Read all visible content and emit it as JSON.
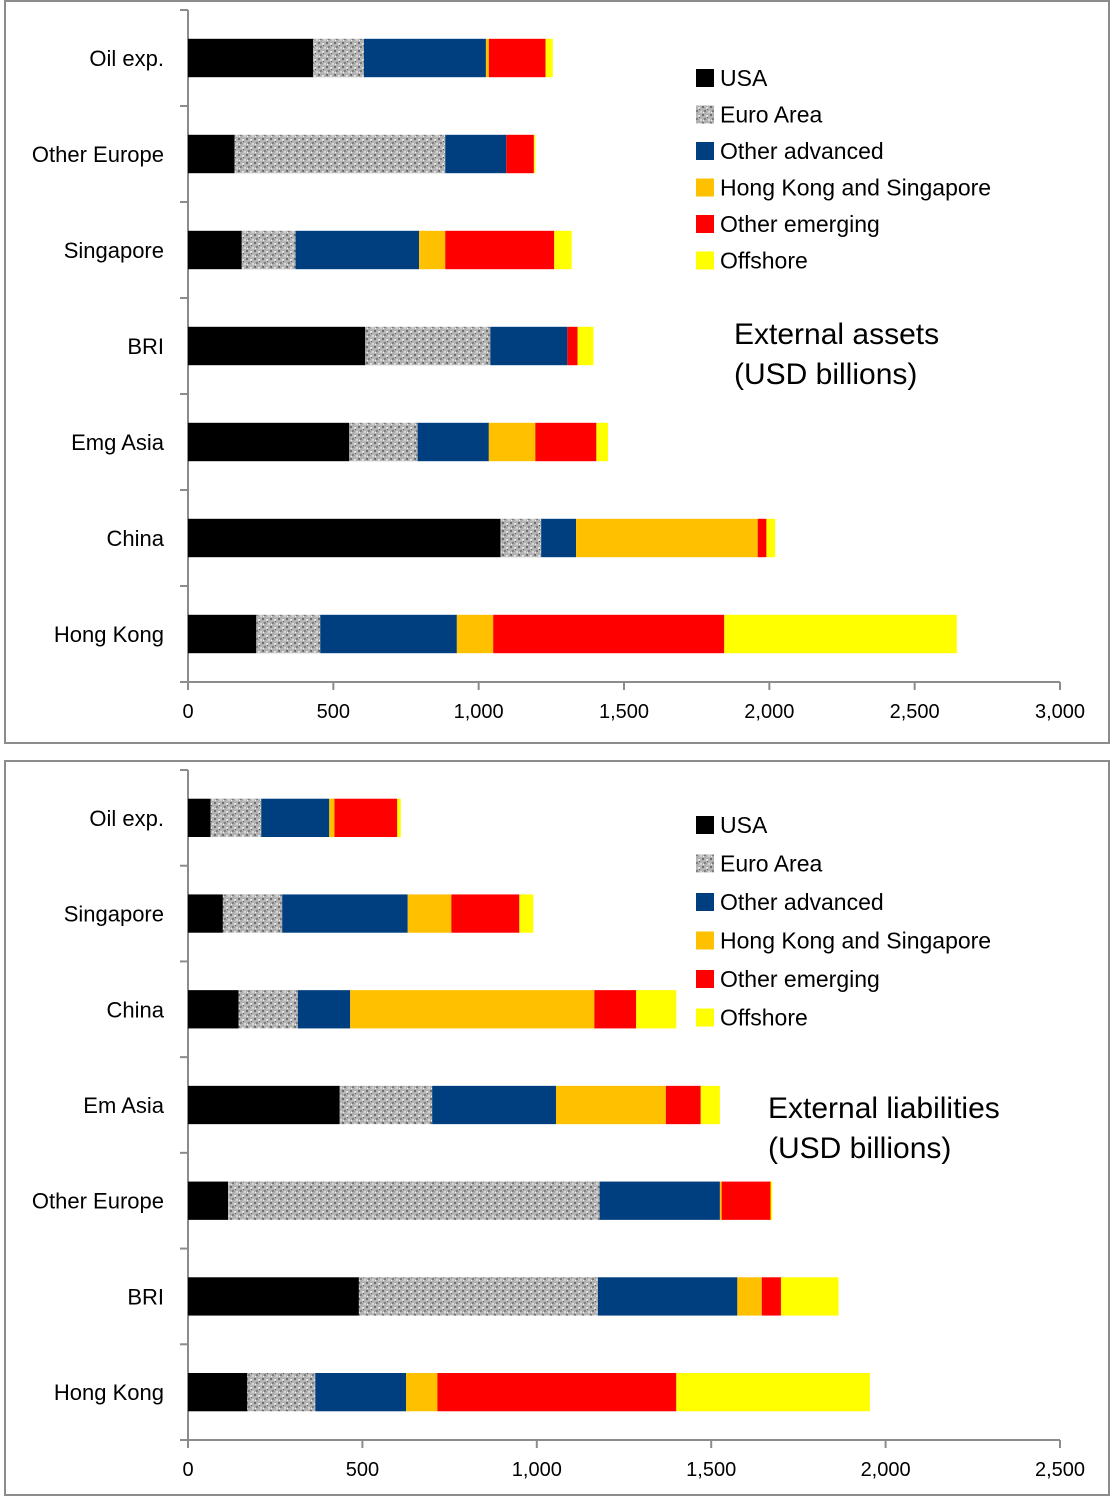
{
  "chart_data": [
    {
      "type": "bar",
      "orientation": "horizontal",
      "stacked": true,
      "title": "",
      "annotation": [
        "External assets",
        "(USD billions)"
      ],
      "xlim": [
        0,
        3000
      ],
      "xticks": [
        "0",
        "500",
        "1,000",
        "1,500",
        "2,000",
        "2,500",
        "3,000"
      ],
      "categories": [
        "Oil exp.",
        "Other Europe",
        "Singapore",
        "BRI",
        "Emg Asia",
        "China",
        "Hong Kong"
      ],
      "legend_position": "top-right",
      "series": [
        {
          "name": "USA",
          "color": "#000000",
          "values": [
            430,
            160,
            185,
            610,
            555,
            1075,
            235
          ]
        },
        {
          "name": "Euro Area",
          "color": "#a6a6a6",
          "values": [
            175,
            725,
            185,
            430,
            235,
            140,
            220
          ]
        },
        {
          "name": "Other advanced",
          "color": "#003f7f",
          "values": [
            420,
            210,
            425,
            265,
            245,
            120,
            470
          ]
        },
        {
          "name": "Hong Kong and Singapore",
          "color": "#ffc000",
          "values": [
            10,
            0,
            90,
            0,
            160,
            625,
            125
          ]
        },
        {
          "name": "Other emerging",
          "color": "#ff0000",
          "values": [
            195,
            95,
            375,
            35,
            210,
            30,
            795
          ]
        },
        {
          "name": "Offshore",
          "color": "#ffff00",
          "values": [
            25,
            5,
            60,
            55,
            40,
            30,
            800
          ]
        }
      ]
    },
    {
      "type": "bar",
      "orientation": "horizontal",
      "stacked": true,
      "title": "",
      "annotation": [
        "External liabilities",
        "(USD billions)"
      ],
      "xlim": [
        0,
        2500
      ],
      "xticks": [
        "0",
        "500",
        "1,000",
        "1,500",
        "2,000",
        "2,500"
      ],
      "categories": [
        "Oil exp.",
        "Singapore",
        "China",
        "Em Asia",
        "Other Europe",
        "BRI",
        "Hong Kong"
      ],
      "legend_position": "top-right",
      "series": [
        {
          "name": "USA",
          "color": "#000000",
          "values": [
            65,
            100,
            145,
            435,
            115,
            490,
            170
          ]
        },
        {
          "name": "Euro Area",
          "color": "#a6a6a6",
          "values": [
            145,
            170,
            170,
            265,
            1065,
            685,
            195
          ]
        },
        {
          "name": "Other advanced",
          "color": "#003f7f",
          "values": [
            195,
            360,
            150,
            355,
            345,
            400,
            260
          ]
        },
        {
          "name": "Hong Kong and Singapore",
          "color": "#ffc000",
          "values": [
            15,
            125,
            700,
            315,
            5,
            70,
            90
          ]
        },
        {
          "name": "Other emerging",
          "color": "#ff0000",
          "values": [
            180,
            195,
            120,
            100,
            140,
            55,
            685
          ]
        },
        {
          "name": "Offshore",
          "color": "#ffff00",
          "values": [
            10,
            40,
            115,
            55,
            5,
            165,
            555
          ]
        }
      ]
    }
  ]
}
